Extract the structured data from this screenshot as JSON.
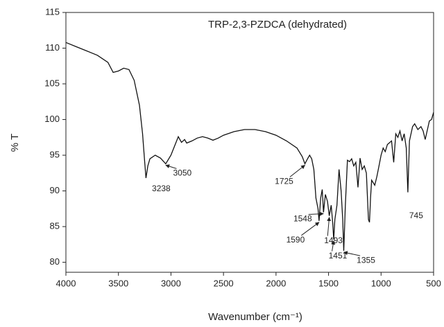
{
  "chart_data": {
    "type": "line",
    "title": "TRP-2,3-PZDCA (dehydrated)",
    "x_label": "Wavenumber (cm⁻¹)",
    "y_label": "% T",
    "xlim": [
      4000,
      500
    ],
    "ylim": [
      78.6,
      115
    ],
    "xticks": [
      4000,
      3500,
      3000,
      2500,
      2000,
      1500,
      1000,
      500
    ],
    "yticks": [
      80,
      85,
      90,
      95,
      100,
      105,
      110,
      115
    ],
    "x": [
      4000,
      3900,
      3800,
      3700,
      3600,
      3550,
      3500,
      3450,
      3400,
      3350,
      3300,
      3270,
      3250,
      3238,
      3220,
      3200,
      3150,
      3100,
      3050,
      3000,
      2960,
      2930,
      2900,
      2870,
      2850,
      2800,
      2750,
      2700,
      2650,
      2600,
      2550,
      2500,
      2400,
      2300,
      2200,
      2100,
      2000,
      1900,
      1800,
      1750,
      1725,
      1700,
      1680,
      1660,
      1640,
      1620,
      1600,
      1590,
      1575,
      1560,
      1548,
      1530,
      1510,
      1493,
      1475,
      1460,
      1451,
      1440,
      1420,
      1400,
      1380,
      1365,
      1355,
      1340,
      1320,
      1300,
      1280,
      1260,
      1240,
      1220,
      1200,
      1180,
      1160,
      1140,
      1120,
      1110,
      1100,
      1090,
      1060,
      1040,
      1020,
      1000,
      980,
      960,
      940,
      900,
      880,
      860,
      840,
      820,
      800,
      780,
      760,
      745,
      730,
      700,
      680,
      650,
      620,
      600,
      580,
      560,
      540,
      520,
      500
    ],
    "series": [
      {
        "name": "TRP-2,3-PZDCA (dehydrated)",
        "color": "#111111",
        "values": [
          110.8,
          110.2,
          109.6,
          109.0,
          108.0,
          106.6,
          106.8,
          107.2,
          107.0,
          105.5,
          102,
          98,
          94,
          91.8,
          93.5,
          94.5,
          95.0,
          94.6,
          93.8,
          95.0,
          96.5,
          97.6,
          96.8,
          97.2,
          96.7,
          97.0,
          97.4,
          97.6,
          97.4,
          97.1,
          97.4,
          97.8,
          98.3,
          98.6,
          98.6,
          98.3,
          97.8,
          97.0,
          96.0,
          94.8,
          93.8,
          94.5,
          95.0,
          94.5,
          93,
          89,
          87.5,
          85.8,
          89,
          90.2,
          87.0,
          89.5,
          88.5,
          86.5,
          88,
          85.5,
          83.2,
          86,
          88,
          93,
          90,
          86,
          81.6,
          88,
          94.3,
          94.1,
          94.5,
          93.5,
          94,
          90.5,
          94.6,
          93,
          93.5,
          92.5,
          86,
          85.6,
          89,
          91.5,
          90.8,
          92,
          93.5,
          95,
          96,
          95.5,
          96.5,
          97,
          94,
          98,
          97.5,
          98.4,
          97,
          98,
          96,
          89.8,
          97,
          99,
          99.4,
          98.6,
          99,
          98.4,
          97.2,
          98.5,
          99.8,
          100,
          101
        ]
      }
    ],
    "annotations": [
      {
        "text": "3238",
        "x": 3238,
        "y": 91.8
      },
      {
        "text": "3050",
        "x": 3050,
        "y": 93.8
      },
      {
        "text": "1725",
        "x": 1725,
        "y": 93.8
      },
      {
        "text": "1548",
        "x": 1548,
        "y": 87.0
      },
      {
        "text": "1590",
        "x": 1590,
        "y": 85.8
      },
      {
        "text": "1493",
        "x": 1493,
        "y": 86.5
      },
      {
        "text": "1451",
        "x": 1451,
        "y": 83.2
      },
      {
        "text": "1355",
        "x": 1355,
        "y": 81.6
      },
      {
        "text": "745",
        "x": 745,
        "y": 89.8
      }
    ]
  }
}
